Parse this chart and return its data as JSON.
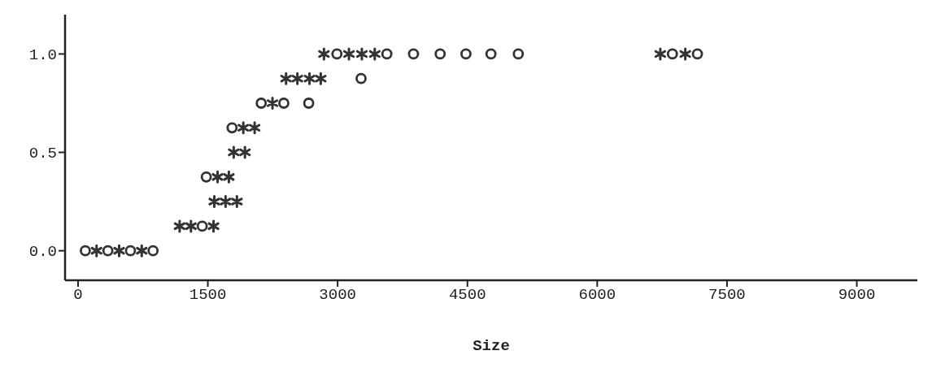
{
  "chart_data": {
    "type": "scatter",
    "xlabel": "Size",
    "xlim": [
      -150,
      9700
    ],
    "ylim": [
      -0.15,
      1.2
    ],
    "xticks": [
      0,
      1500,
      3000,
      4500,
      6000,
      7500,
      9000
    ],
    "yticks": [
      {
        "value": 0,
        "label": "0.0"
      },
      {
        "value": 0.5,
        "label": "0.5"
      },
      {
        "value": 1,
        "label": "1.0"
      }
    ],
    "grid": false,
    "legend": false,
    "series": [
      {
        "color": "#333333",
        "marker": "circle",
        "x": [
          84,
          345,
          606,
          867,
          1435,
          1482,
          1780,
          2117,
          2378,
          2666,
          3271,
          2992,
          3569,
          3877,
          4185,
          4483,
          4772,
          5088,
          6869,
          7158
        ],
        "values": [
          0,
          0,
          0,
          0,
          0.125,
          0.375,
          0.625,
          0.75,
          0.75,
          0.75,
          0.875,
          1,
          1,
          1,
          1,
          1,
          1,
          1,
          1,
          1
        ]
      },
      {
        "color": "#333333",
        "marker": "cross",
        "x": [
          214,
          475,
          736,
          1174,
          1305,
          1566,
          1575,
          1705,
          1836,
          1612,
          1743,
          1799,
          1929,
          1910,
          2041,
          2247,
          2404,
          2535,
          2675,
          2805,
          2842,
          3131,
          3280,
          3429,
          6729,
          7018
        ],
        "values": [
          0,
          0,
          0,
          0.125,
          0.125,
          0.125,
          0.25,
          0.25,
          0.25,
          0.375,
          0.375,
          0.5,
          0.5,
          0.625,
          0.625,
          0.75,
          0.875,
          0.875,
          0.875,
          0.875,
          1,
          1,
          1,
          1,
          1,
          1
        ]
      }
    ]
  }
}
